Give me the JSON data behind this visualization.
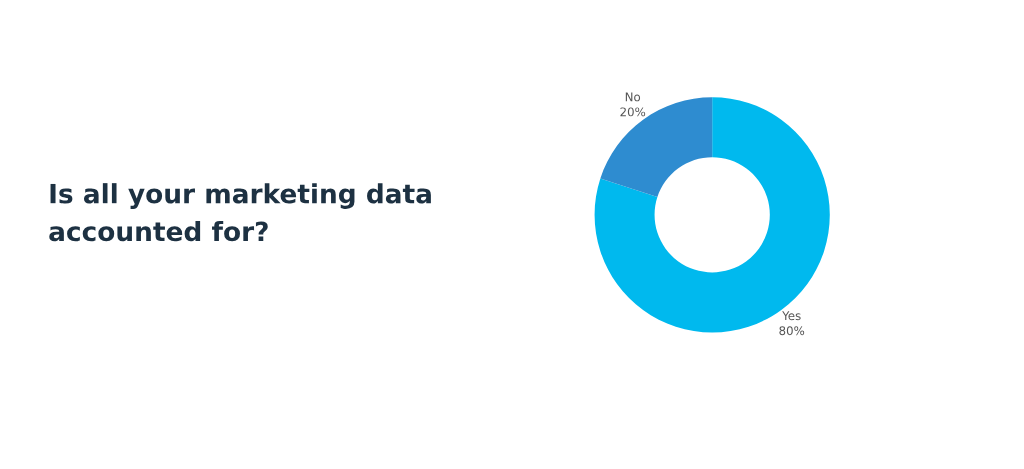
{
  "chart_data": {
    "type": "donut",
    "title": "Is all your marketing data\naccounted for?",
    "categories": [
      "Yes",
      "No"
    ],
    "values": [
      80,
      20
    ],
    "colors": [
      "#00b9ee",
      "#2e8cd0"
    ],
    "value_labels": [
      "80%",
      "20%"
    ],
    "legend": false
  }
}
